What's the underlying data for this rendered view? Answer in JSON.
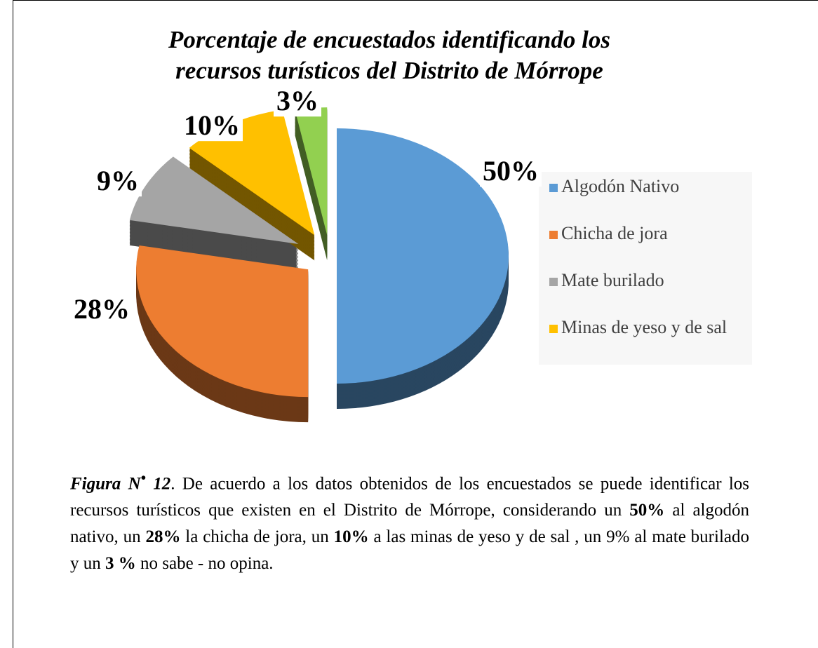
{
  "chart_data": {
    "type": "pie",
    "title": [
      "Porcentaje de encuestados identificando los",
      "recursos turísticos del Distrito de Mórrope"
    ],
    "categories": [
      "Algodón Nativo",
      "Chicha de jora",
      "Mate burilado",
      "Minas de yeso y de sal",
      null
    ],
    "values": [
      50,
      28,
      9,
      10,
      3
    ],
    "value_labels": [
      "50%",
      "28%",
      "9%",
      "10%",
      "3%"
    ],
    "colors": [
      "#5b9bd5",
      "#ed7d31",
      "#a5a5a5",
      "#ffc000",
      "#92d050"
    ],
    "legend": "right"
  },
  "caption": [
    {
      "text": "Figura N",
      "bold": true,
      "italic": true
    },
    {
      "text": "•",
      "bold": true,
      "italic": true,
      "sup": true
    },
    {
      "text": " 12",
      "bold": true,
      "italic": true
    },
    {
      "text": ". De acuerdo a los datos obtenidos de los encuestados se puede identificar los recursos turísticos que existen en el Distrito de Mórrope, considerando un "
    },
    {
      "text": "50%",
      "bold": true
    },
    {
      "text": " al algodón nativo, un "
    },
    {
      "text": "28%",
      "bold": true
    },
    {
      "text": " la chicha de jora, un "
    },
    {
      "text": "10%",
      "bold": true
    },
    {
      "text": " a las minas de yeso y de sal , un 9% al mate burilado y un "
    },
    {
      "text": "3 %",
      "bold": true
    },
    {
      "text": " no sabe - no opina."
    }
  ]
}
